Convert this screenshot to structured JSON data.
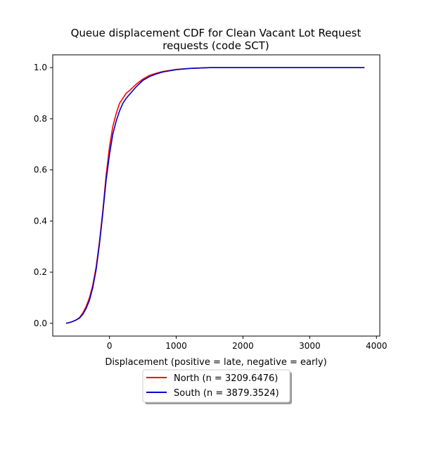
{
  "chart_data": {
    "type": "line",
    "title": "Queue displacement CDF for Clean Vacant Lot Request\nrequests (code SCT)",
    "xlabel": "Displacement (positive = late, negative = early)",
    "ylabel": "",
    "xlim": [
      -850,
      4050
    ],
    "ylim": [
      -0.05,
      1.05
    ],
    "xticks": [
      0,
      1000,
      2000,
      3000,
      4000
    ],
    "yticks": [
      0.0,
      0.2,
      0.4,
      0.6,
      0.8,
      1.0
    ],
    "grid": false,
    "legend": {
      "position": "bottom-center",
      "shadow": true
    },
    "series": [
      {
        "name": "North (n = 3209.6476)",
        "color": "#ff0000",
        "x": [
          -650,
          -600,
          -550,
          -500,
          -450,
          -400,
          -350,
          -300,
          -250,
          -200,
          -150,
          -100,
          -50,
          0,
          50,
          100,
          150,
          200,
          250,
          300,
          400,
          500,
          600,
          700,
          800,
          1000,
          1200,
          1500,
          2000,
          3000,
          3820
        ],
        "y": [
          0.0,
          0.003,
          0.007,
          0.013,
          0.022,
          0.04,
          0.065,
          0.1,
          0.15,
          0.22,
          0.32,
          0.44,
          0.58,
          0.69,
          0.77,
          0.82,
          0.86,
          0.88,
          0.9,
          0.91,
          0.935,
          0.955,
          0.97,
          0.978,
          0.985,
          0.993,
          0.997,
          1.0,
          1.0,
          1.0,
          1.0
        ]
      },
      {
        "name": "South (n = 3879.3524)",
        "color": "#0000cc",
        "x": [
          -650,
          -600,
          -550,
          -500,
          -450,
          -400,
          -350,
          -300,
          -250,
          -200,
          -150,
          -100,
          -50,
          0,
          50,
          100,
          150,
          200,
          250,
          300,
          400,
          500,
          600,
          700,
          800,
          1000,
          1200,
          1500,
          2000,
          3000,
          3820
        ],
        "y": [
          0.0,
          0.003,
          0.007,
          0.013,
          0.02,
          0.035,
          0.058,
          0.09,
          0.14,
          0.21,
          0.31,
          0.43,
          0.56,
          0.66,
          0.74,
          0.79,
          0.83,
          0.86,
          0.88,
          0.895,
          0.925,
          0.95,
          0.965,
          0.975,
          0.983,
          0.992,
          0.997,
          1.0,
          1.0,
          1.0,
          1.0
        ]
      }
    ]
  }
}
